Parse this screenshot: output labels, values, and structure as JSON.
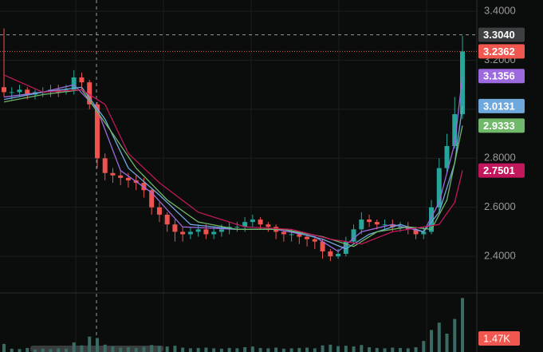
{
  "chart_data": {
    "type": "candlestick",
    "open": [
      3.09,
      3.07,
      3.07,
      3.08,
      3.06,
      3.07,
      3.07,
      3.08,
      3.07,
      3.08,
      3.13,
      3.11,
      3.02,
      2.8,
      2.74,
      2.73,
      2.72,
      2.71,
      2.7,
      2.67,
      2.6,
      2.57,
      2.53,
      2.5,
      2.49,
      2.5,
      2.51,
      2.49,
      2.5,
      2.51,
      2.52,
      2.52,
      2.54,
      2.55,
      2.53,
      2.52,
      2.5,
      2.49,
      2.49,
      2.48,
      2.47,
      2.46,
      2.42,
      2.4,
      2.41,
      2.46,
      2.51,
      2.55,
      2.54,
      2.53,
      2.53,
      2.52,
      2.52,
      2.51,
      2.49,
      2.5,
      2.6,
      2.76,
      2.85,
      2.98
    ],
    "high": [
      3.33,
      3.09,
      3.1,
      3.09,
      3.08,
      3.09,
      3.1,
      3.1,
      3.1,
      3.16,
      3.15,
      3.12,
      3.03,
      2.82,
      2.76,
      2.75,
      2.74,
      2.73,
      2.72,
      2.68,
      2.62,
      2.58,
      2.55,
      2.52,
      2.52,
      2.53,
      2.53,
      2.52,
      2.53,
      2.54,
      2.54,
      2.56,
      2.57,
      2.56,
      2.54,
      2.53,
      2.51,
      2.51,
      2.5,
      2.49,
      2.48,
      2.47,
      2.43,
      2.43,
      2.48,
      2.53,
      2.58,
      2.57,
      2.55,
      2.55,
      2.55,
      2.54,
      2.54,
      2.52,
      2.52,
      2.63,
      2.8,
      2.9,
      3.05,
      3.3
    ],
    "low": [
      3.05,
      3.04,
      3.05,
      3.04,
      3.04,
      3.05,
      3.05,
      3.05,
      3.06,
      3.06,
      3.08,
      3.0,
      2.76,
      2.71,
      2.7,
      2.69,
      2.68,
      2.67,
      2.64,
      2.57,
      2.54,
      2.5,
      2.46,
      2.46,
      2.47,
      2.48,
      2.47,
      2.47,
      2.48,
      2.49,
      2.5,
      2.5,
      2.52,
      2.51,
      2.5,
      2.47,
      2.46,
      2.46,
      2.45,
      2.44,
      2.43,
      2.39,
      2.38,
      2.39,
      2.4,
      2.45,
      2.49,
      2.52,
      2.51,
      2.51,
      2.5,
      2.5,
      2.49,
      2.47,
      2.47,
      2.49,
      2.58,
      2.74,
      2.84,
      2.96
    ],
    "close": [
      3.07,
      3.07,
      3.08,
      3.06,
      3.07,
      3.07,
      3.08,
      3.07,
      3.08,
      3.13,
      3.11,
      3.02,
      2.8,
      2.74,
      2.73,
      2.72,
      2.71,
      2.7,
      2.67,
      2.6,
      2.57,
      2.53,
      2.5,
      2.49,
      2.5,
      2.51,
      2.49,
      2.5,
      2.51,
      2.52,
      2.52,
      2.54,
      2.55,
      2.53,
      2.52,
      2.5,
      2.49,
      2.49,
      2.48,
      2.47,
      2.46,
      2.42,
      2.4,
      2.41,
      2.46,
      2.51,
      2.55,
      2.54,
      2.53,
      2.53,
      2.52,
      2.52,
      2.51,
      2.49,
      2.5,
      2.6,
      2.76,
      2.85,
      2.98,
      3.2362
    ],
    "up_color": "#26a69a",
    "down_color": "#ef5350",
    "ylim": [
      2.257,
      3.446
    ],
    "yticks": [
      {
        "value": 2.4,
        "label": "2.4000"
      },
      {
        "value": 2.6,
        "label": "2.6000"
      },
      {
        "value": 2.8,
        "label": "2.8000"
      },
      {
        "value": 3.0,
        "label": "3.0000"
      },
      {
        "value": 3.2,
        "label": "3.2000"
      },
      {
        "value": 3.4,
        "label": "3.4000"
      }
    ],
    "grid": true,
    "moving_averages": [
      {
        "color": "#9c6ade",
        "x": [
          0,
          5,
          9,
          12,
          15,
          19,
          23,
          30,
          35,
          40,
          43,
          46,
          50,
          54,
          56,
          58,
          59
        ],
        "values": [
          3.05,
          3.07,
          3.1,
          3.0,
          2.75,
          2.66,
          2.52,
          2.51,
          2.51,
          2.48,
          2.42,
          2.5,
          2.53,
          2.5,
          2.62,
          2.86,
          3.1356
        ]
      },
      {
        "color": "#6fa8dc",
        "x": [
          0,
          5,
          10,
          13,
          16,
          20,
          24,
          30,
          36,
          41,
          44,
          47,
          51,
          54,
          56,
          58,
          59
        ],
        "values": [
          3.04,
          3.07,
          3.09,
          2.96,
          2.76,
          2.65,
          2.53,
          2.51,
          2.51,
          2.47,
          2.43,
          2.49,
          2.53,
          2.5,
          2.58,
          2.78,
          3.0131
        ]
      },
      {
        "color": "#70b86a",
        "x": [
          0,
          5,
          10,
          14,
          17,
          21,
          25,
          30,
          36,
          41,
          45,
          48,
          52,
          55,
          57,
          59
        ],
        "values": [
          3.03,
          3.06,
          3.08,
          2.9,
          2.76,
          2.63,
          2.54,
          2.51,
          2.51,
          2.48,
          2.44,
          2.5,
          2.52,
          2.51,
          2.63,
          2.9333
        ]
      },
      {
        "color": "#c2185b",
        "x": [
          0,
          5,
          10,
          13,
          16,
          20,
          25,
          31,
          37,
          42,
          46,
          50,
          54,
          56,
          58,
          59
        ],
        "values": [
          3.14,
          3.07,
          3.08,
          3.02,
          2.82,
          2.7,
          2.58,
          2.52,
          2.51,
          2.47,
          2.45,
          2.5,
          2.52,
          2.53,
          2.62,
          2.7501
        ]
      }
    ],
    "crosshair": {
      "value": 3.304,
      "label": "3.3040"
    },
    "last_price_color": "#f0584f",
    "volume": {
      "values": [
        220,
        90,
        80,
        110,
        70,
        90,
        80,
        100,
        90,
        260,
        180,
        420,
        380,
        200,
        150,
        120,
        130,
        110,
        140,
        190,
        160,
        150,
        170,
        120,
        100,
        110,
        120,
        100,
        90,
        110,
        100,
        130,
        150,
        110,
        100,
        120,
        90,
        100,
        110,
        120,
        100,
        180,
        200,
        160,
        170,
        150,
        190,
        130,
        110,
        100,
        120,
        110,
        100,
        130,
        300,
        600,
        800,
        500,
        900,
        1470
      ],
      "ylim": [
        0,
        1500
      ],
      "color": "#3a6b65",
      "last": {
        "value": 1470,
        "label": "1.47K"
      }
    }
  }
}
